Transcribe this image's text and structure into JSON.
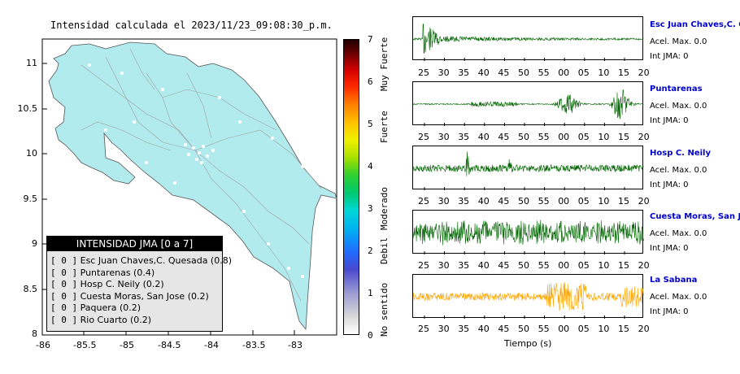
{
  "map": {
    "title": "Intensidad calculada el 2023/11/23_09:08:30_p.m.",
    "x_ticks": [
      "-86",
      "-85.5",
      "-85",
      "-84.5",
      "-84",
      "-83.5",
      "-83"
    ],
    "y_ticks": [
      "11",
      "10.5",
      "10",
      "9.5",
      "9",
      "8.5",
      "8"
    ],
    "land_color": "#b2ebee",
    "road_color": "#a0a0a0"
  },
  "legend": {
    "header": "INTENSIDAD JMA [0 a 7]",
    "items": [
      {
        "value": "[ 0 ]",
        "label": "Esc Juan Chaves,C. Quesada (0.8)"
      },
      {
        "value": "[ 0 ]",
        "label": "Puntarenas (0.4)"
      },
      {
        "value": "[ 0 ]",
        "label": "Hosp C. Neily (0.2)"
      },
      {
        "value": "[ 0 ]",
        "label": "Cuesta Moras, San Jose (0.2)"
      },
      {
        "value": "[ 0 ]",
        "label": "Paquera (0.2)"
      },
      {
        "value": "[ 0 ]",
        "label": "Rio Cuarto (0.2)"
      }
    ]
  },
  "colorbar": {
    "ticks": [
      "7",
      "6",
      "5",
      "4",
      "3",
      "2",
      "1",
      "0"
    ],
    "labels": [
      "Muy Fuerte",
      "Fuerte",
      "Moderado",
      "Debil",
      "No sentido"
    ]
  },
  "waveforms": {
    "time_label": "Tiempo (s)",
    "stations": [
      {
        "name": "Esc Juan Chaves,C. Qu",
        "acel": "Acel. Max. 0.0",
        "int": "Int JMA: 0",
        "color": "#006400",
        "ticks": [
          "25",
          "30",
          "35",
          "40",
          "45",
          "50",
          "55",
          "00",
          "05",
          "10",
          "15",
          "20"
        ]
      },
      {
        "name": "Puntarenas",
        "acel": "Acel. Max. 0.0",
        "int": "Int JMA: 0",
        "color": "#006400",
        "ticks": [
          "25",
          "30",
          "35",
          "40",
          "45",
          "50",
          "55",
          "00",
          "05",
          "10",
          "15",
          "20"
        ]
      },
      {
        "name": "Hosp C. Neily",
        "acel": "Acel. Max. 0.0",
        "int": "Int JMA: 0",
        "color": "#006400",
        "ticks": [
          "25",
          "30",
          "35",
          "40",
          "45",
          "50",
          "55",
          "00",
          "05",
          "10",
          "15",
          "20"
        ]
      },
      {
        "name": "Cuesta Moras, San Jose",
        "acel": "Acel. Max. 0.0",
        "int": "Int JMA: 0",
        "color": "#006400",
        "ticks": [
          "25",
          "30",
          "35",
          "40",
          "45",
          "50",
          "55",
          "00",
          "05",
          "10",
          "15",
          "20"
        ]
      },
      {
        "name": "La Sabana",
        "acel": "Acel. Max. 0.0",
        "int": "Int JMA: 0",
        "color": "#ffa500",
        "ticks": [
          "25",
          "30",
          "35",
          "40",
          "45",
          "50",
          "55",
          "00",
          "05",
          "10",
          "15",
          "20"
        ]
      }
    ]
  }
}
